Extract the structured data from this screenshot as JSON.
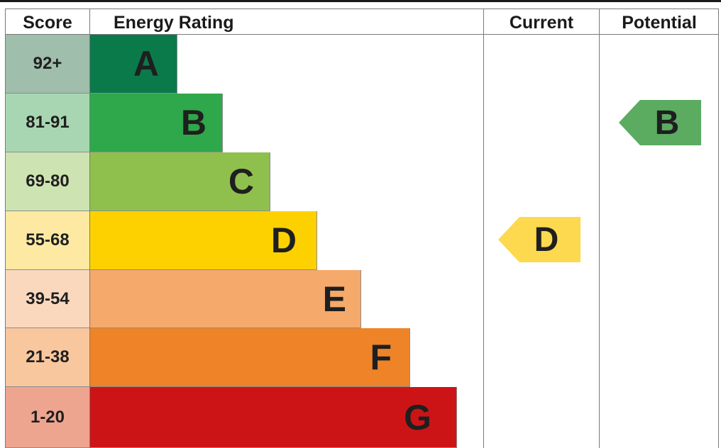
{
  "headers": {
    "score": "Score",
    "energy_rating": "Energy Rating",
    "current": "Current",
    "potential": "Potential"
  },
  "chart_data": {
    "type": "bar",
    "bands": [
      {
        "score": "92+",
        "letter": "A",
        "band_color": "#0b7a4b",
        "score_color": "#9fbeab"
      },
      {
        "score": "81-91",
        "letter": "B",
        "band_color": "#2ea84a",
        "score_color": "#a8d6b2"
      },
      {
        "score": "69-80",
        "letter": "C",
        "band_color": "#8fc04e",
        "score_color": "#cee3b2"
      },
      {
        "score": "55-68",
        "letter": "D",
        "band_color": "#fdd100",
        "score_color": "#fee9a3"
      },
      {
        "score": "39-54",
        "letter": "E",
        "band_color": "#f5a96a",
        "score_color": "#fad8be"
      },
      {
        "score": "21-38",
        "letter": "F",
        "band_color": "#ee8328",
        "score_color": "#f8c79d"
      },
      {
        "score": "1-20",
        "letter": "G",
        "band_color": "#cc1417",
        "score_color": "#eea58f"
      }
    ],
    "current": {
      "letter": "D",
      "color": "#fcd94e"
    },
    "potential": {
      "letter": "B",
      "color": "#5bab61"
    }
  }
}
